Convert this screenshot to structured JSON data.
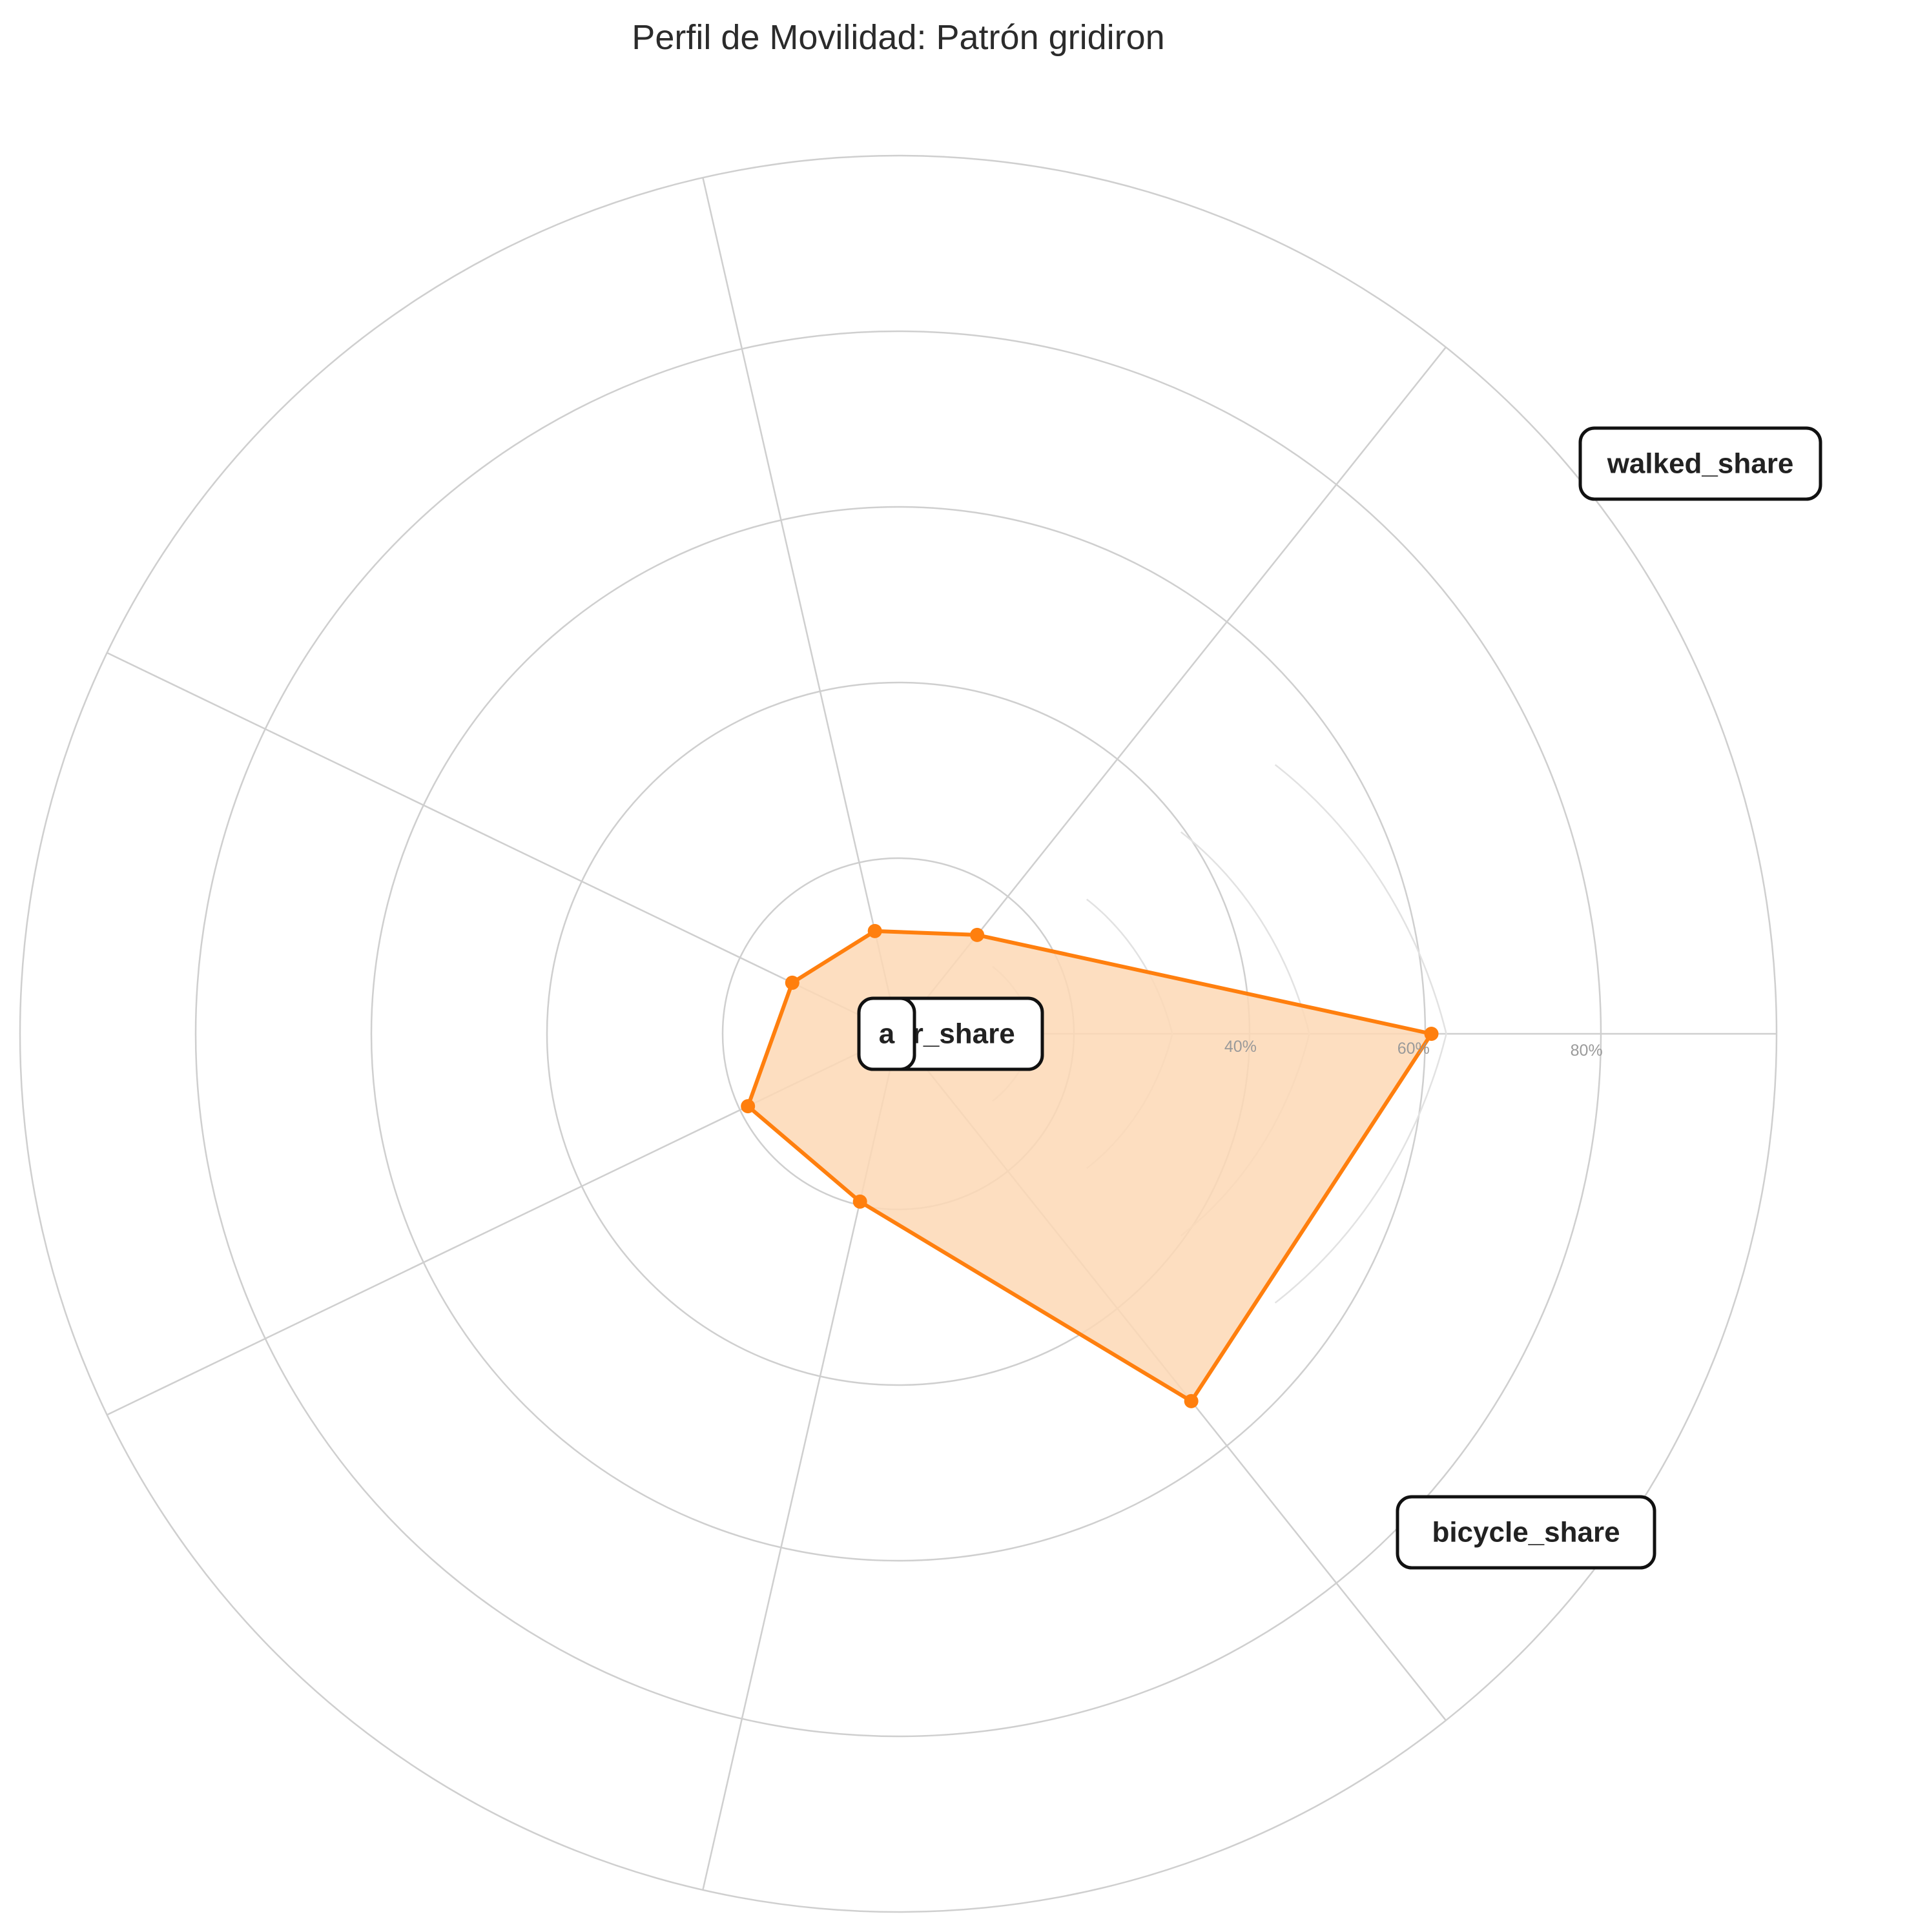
{
  "colors": {
    "series": "#ff7f0e",
    "fill": "#fdd8b5",
    "grid": "#cfcfcf",
    "inner_grid": "#e2e2e2",
    "tick_text": "#9a9a9a",
    "label_box_border": "#111111"
  },
  "chart_data": {
    "type": "radar",
    "title": "Perfil de Movilidad: Patrón gridiron",
    "axis_labels_visible": [
      "walked_share",
      "bicycle_share",
      "a",
      "ar_share"
    ],
    "tick_labels": [
      "40%",
      "60%",
      "80%"
    ],
    "categories": [
      "walked_share",
      "bicycle_share",
      "",
      "",
      "",
      "",
      ""
    ],
    "rlim": [
      0,
      100
    ],
    "grid": true,
    "series": [
      {
        "values": [
          60.7,
          53.5,
          19.6,
          19.0,
          13.4,
          12.0,
          14.4
        ]
      }
    ]
  }
}
